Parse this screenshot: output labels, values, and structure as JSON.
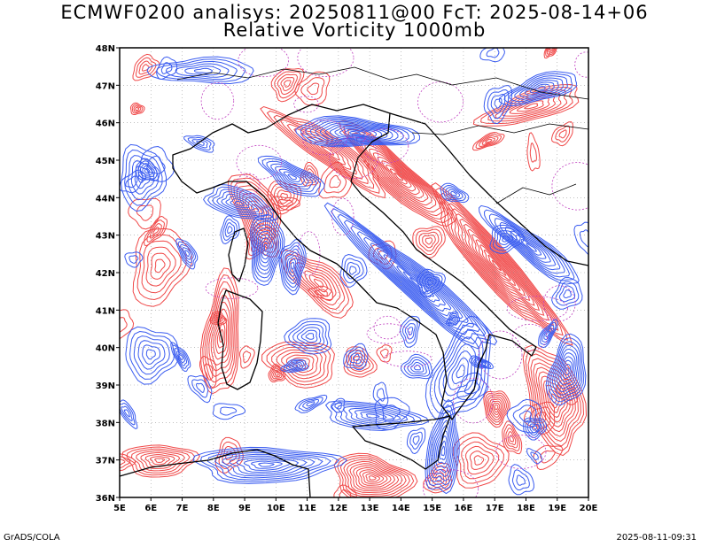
{
  "header": {
    "title_line1": "ECMWF0200 analisys: 20250811@00 FcT: 2025-08-14+06",
    "title_line2": "Relative Vorticity 1000mb"
  },
  "map": {
    "lon_labels": [
      "5E",
      "6E",
      "7E",
      "8E",
      "9E",
      "10E",
      "11E",
      "12E",
      "13E",
      "14E",
      "15E",
      "16E",
      "17E",
      "18E",
      "19E",
      "20E"
    ],
    "lat_labels": [
      "48N",
      "47N",
      "46N",
      "45N",
      "44N",
      "43N",
      "42N",
      "41N",
      "40N",
      "39N",
      "38N",
      "37N",
      "36N"
    ],
    "lon_range": [
      5,
      20
    ],
    "lat_range": [
      36,
      48
    ],
    "grid": true,
    "colors": {
      "positive_contours": "#3a5cf0",
      "negative_contours": "#f04848",
      "dashed_contours": "#c040c0",
      "coastline": "#000000",
      "grid": "#9a9a9a"
    }
  },
  "footer": {
    "left": "GrADS/COLA",
    "right": "2025-08-11-09:31"
  }
}
